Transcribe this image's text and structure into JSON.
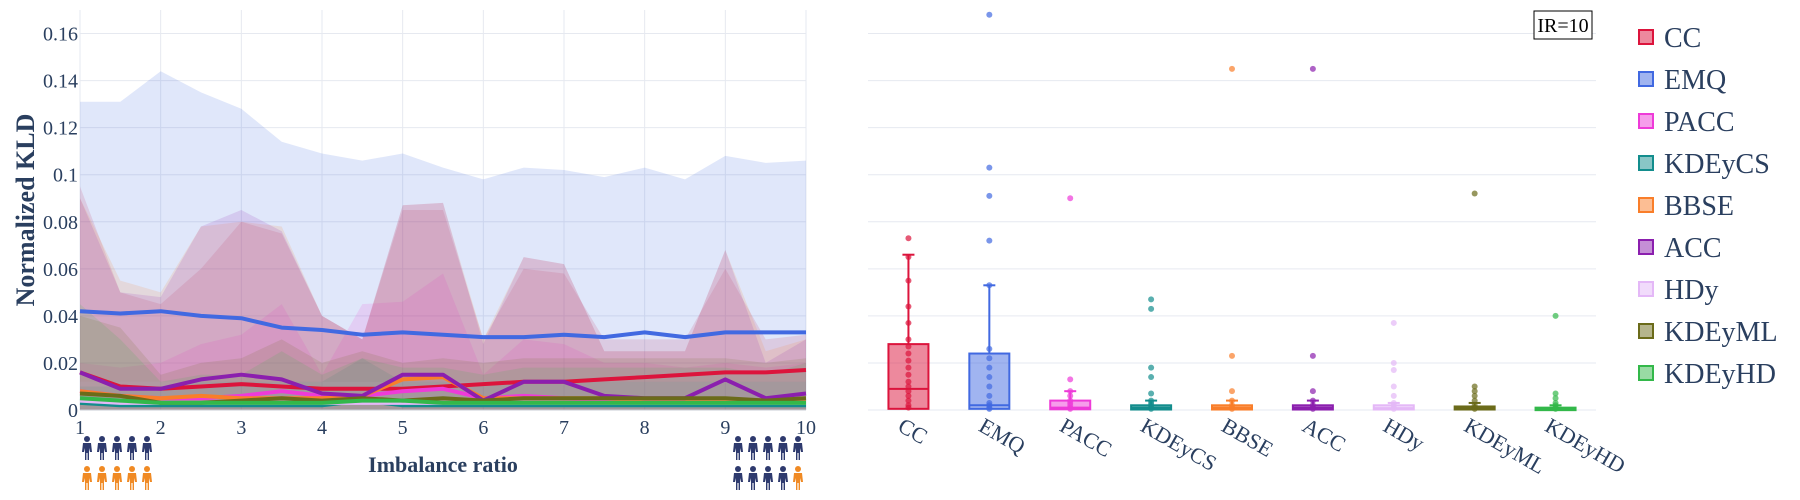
{
  "chart_data": [
    {
      "type": "line",
      "xlabel": "Imbalance ratio",
      "ylabel": "Normalized KLD",
      "xlim": [
        1,
        10
      ],
      "ylim": [
        0,
        0.17
      ],
      "xticks": [
        "1",
        "2",
        "3",
        "4",
        "5",
        "6",
        "7",
        "8",
        "9",
        "10"
      ],
      "yticks": [
        "0",
        "0.02",
        "0.04",
        "0.06",
        "0.08",
        "0.1",
        "0.12",
        "0.14",
        "0.16"
      ],
      "grid": true,
      "x": [
        1,
        1.5,
        2,
        2.5,
        3,
        3.5,
        4,
        4.5,
        5,
        5.5,
        6,
        6.5,
        7,
        7.5,
        8,
        8.5,
        9,
        9.5,
        10
      ],
      "series": [
        {
          "name": "CC",
          "color": "#dc143c",
          "values": [
            0.016,
            0.01,
            0.009,
            0.01,
            0.011,
            0.01,
            0.009,
            0.009,
            0.009,
            0.01,
            0.011,
            0.012,
            0.012,
            0.013,
            0.014,
            0.015,
            0.016,
            0.016,
            0.017
          ],
          "upper": [
            0.095,
            0.05,
            0.045,
            0.06,
            0.08,
            0.075,
            0.04,
            0.03,
            0.085,
            0.085,
            0.03,
            0.06,
            0.058,
            0.03,
            0.03,
            0.03,
            0.06,
            0.03,
            0.032
          ]
        },
        {
          "name": "EMQ",
          "color": "#4169e1",
          "values": [
            0.042,
            0.041,
            0.042,
            0.04,
            0.039,
            0.035,
            0.034,
            0.032,
            0.033,
            0.032,
            0.031,
            0.031,
            0.032,
            0.031,
            0.033,
            0.031,
            0.033,
            0.033,
            0.033
          ],
          "upper": [
            0.131,
            0.131,
            0.144,
            0.135,
            0.128,
            0.114,
            0.109,
            0.106,
            0.109,
            0.103,
            0.098,
            0.103,
            0.102,
            0.099,
            0.103,
            0.098,
            0.108,
            0.105,
            0.106
          ]
        },
        {
          "name": "PACC",
          "color": "#ee3bd8",
          "values": [
            0.008,
            0.006,
            0.005,
            0.005,
            0.006,
            0.008,
            0.006,
            0.006,
            0.008,
            0.009,
            0.005,
            0.006,
            0.005,
            0.004,
            0.004,
            0.004,
            0.004,
            0.004,
            0.004
          ],
          "upper": [
            0.02,
            0.018,
            0.02,
            0.028,
            0.032,
            0.045,
            0.015,
            0.045,
            0.046,
            0.058,
            0.015,
            0.03,
            0.028,
            0.02,
            0.02,
            0.018,
            0.02,
            0.018,
            0.02
          ]
        },
        {
          "name": "KDEyCS",
          "color": "#138d8d",
          "values": [
            0.003,
            0.002,
            0.002,
            0.002,
            0.002,
            0.002,
            0.002,
            0.004,
            0.002,
            0.002,
            0.002,
            0.002,
            0.002,
            0.002,
            0.002,
            0.002,
            0.002,
            0.002,
            0.002
          ],
          "upper": [
            0.01,
            0.01,
            0.01,
            0.012,
            0.012,
            0.012,
            0.012,
            0.022,
            0.012,
            0.012,
            0.01,
            0.012,
            0.012,
            0.012,
            0.012,
            0.012,
            0.012,
            0.012,
            0.012
          ]
        },
        {
          "name": "BBSE",
          "color": "#f97e2a",
          "values": [
            0.008,
            0.006,
            0.005,
            0.006,
            0.005,
            0.005,
            0.005,
            0.006,
            0.013,
            0.014,
            0.005,
            0.005,
            0.005,
            0.005,
            0.004,
            0.004,
            0.004,
            0.004,
            0.004
          ],
          "upper": [
            0.09,
            0.055,
            0.05,
            0.078,
            0.08,
            0.078,
            0.04,
            0.03,
            0.087,
            0.088,
            0.03,
            0.065,
            0.062,
            0.025,
            0.025,
            0.025,
            0.068,
            0.025,
            0.03
          ]
        },
        {
          "name": "ACC",
          "color": "#8b1fae",
          "values": [
            0.016,
            0.009,
            0.009,
            0.013,
            0.015,
            0.013,
            0.007,
            0.006,
            0.015,
            0.015,
            0.004,
            0.012,
            0.012,
            0.006,
            0.005,
            0.005,
            0.013,
            0.005,
            0.007
          ],
          "upper": [
            0.09,
            0.05,
            0.048,
            0.078,
            0.085,
            0.076,
            0.04,
            0.03,
            0.087,
            0.088,
            0.028,
            0.065,
            0.062,
            0.025,
            0.025,
            0.025,
            0.068,
            0.02,
            0.03
          ]
        },
        {
          "name": "HDy",
          "color": "#e4b8f7",
          "values": [
            0.004,
            0.003,
            0.003,
            0.003,
            0.003,
            0.003,
            0.003,
            0.003,
            0.003,
            0.003,
            0.003,
            0.003,
            0.003,
            0.003,
            0.003,
            0.003,
            0.003,
            0.003,
            0.003
          ],
          "upper": [
            0.012,
            0.012,
            0.012,
            0.012,
            0.012,
            0.012,
            0.012,
            0.012,
            0.012,
            0.012,
            0.012,
            0.012,
            0.012,
            0.012,
            0.012,
            0.012,
            0.012,
            0.012,
            0.012
          ]
        },
        {
          "name": "KDEyML",
          "color": "#6b6b1a",
          "values": [
            0.007,
            0.006,
            0.003,
            0.003,
            0.004,
            0.005,
            0.004,
            0.005,
            0.004,
            0.005,
            0.004,
            0.005,
            0.005,
            0.005,
            0.005,
            0.005,
            0.005,
            0.004,
            0.005
          ],
          "upper": [
            0.04,
            0.035,
            0.015,
            0.02,
            0.022,
            0.03,
            0.02,
            0.025,
            0.02,
            0.022,
            0.02,
            0.022,
            0.022,
            0.022,
            0.022,
            0.022,
            0.022,
            0.02,
            0.022
          ]
        },
        {
          "name": "KDEyHD",
          "color": "#33b84a",
          "values": [
            0.005,
            0.004,
            0.003,
            0.003,
            0.003,
            0.003,
            0.003,
            0.004,
            0.004,
            0.003,
            0.003,
            0.003,
            0.003,
            0.003,
            0.003,
            0.003,
            0.003,
            0.003,
            0.003
          ],
          "upper": [
            0.045,
            0.03,
            0.012,
            0.015,
            0.015,
            0.025,
            0.015,
            0.022,
            0.018,
            0.018,
            0.015,
            0.018,
            0.018,
            0.018,
            0.018,
            0.018,
            0.018,
            0.015,
            0.02
          ]
        }
      ]
    },
    {
      "type": "box",
      "annotation": "IR=10",
      "ylim": [
        0,
        0.17
      ],
      "categories": [
        "CC",
        "EMQ",
        "PACC",
        "KDEyCS",
        "BBSE",
        "ACC",
        "HDy",
        "KDEyML",
        "KDEyHD"
      ],
      "boxes": [
        {
          "name": "CC",
          "color": "#dc143c",
          "q1": 0.0005,
          "median": 0.009,
          "q3": 0.028,
          "lower_whisker": 0,
          "upper_whisker": 0.066,
          "points": [
            0.073,
            0.065,
            0.055,
            0.044,
            0.037,
            0.03,
            0.027,
            0.024,
            0.021,
            0.018,
            0.015,
            0.012,
            0.01,
            0.008,
            0.006,
            0.004,
            0.002,
            0.001
          ]
        },
        {
          "name": "EMQ",
          "color": "#4169e1",
          "q1": 0.0005,
          "median": 0.002,
          "q3": 0.024,
          "lower_whisker": 0,
          "upper_whisker": 0.053,
          "points": [
            0.168,
            0.103,
            0.091,
            0.072,
            0.053,
            0.026,
            0.022,
            0.018,
            0.014,
            0.01,
            0.006,
            0.003,
            0.002,
            0.001,
            0.0005
          ]
        },
        {
          "name": "PACC",
          "color": "#ee3bd8",
          "q1": 0.0003,
          "median": 0.001,
          "q3": 0.004,
          "lower_whisker": 0,
          "upper_whisker": 0.008,
          "points": [
            0.09,
            0.013,
            0.008,
            0.006,
            0.004,
            0.003,
            0.002,
            0.001,
            0.0005
          ]
        },
        {
          "name": "KDEyCS",
          "color": "#138d8d",
          "q1": 0.0002,
          "median": 0.001,
          "q3": 0.002,
          "lower_whisker": 0,
          "upper_whisker": 0.004,
          "points": [
            0.047,
            0.043,
            0.018,
            0.014,
            0.007,
            0.004,
            0.003,
            0.002,
            0.001,
            0.0005
          ]
        },
        {
          "name": "BBSE",
          "color": "#f97e2a",
          "q1": 0.0002,
          "median": 0.001,
          "q3": 0.002,
          "lower_whisker": 0,
          "upper_whisker": 0.004,
          "points": [
            0.145,
            0.023,
            0.008,
            0.004,
            0.002,
            0.001,
            0.0005
          ]
        },
        {
          "name": "ACC",
          "color": "#8b1fae",
          "q1": 0.0002,
          "median": 0.001,
          "q3": 0.002,
          "lower_whisker": 0,
          "upper_whisker": 0.004,
          "points": [
            0.145,
            0.023,
            0.008,
            0.004,
            0.002,
            0.001,
            0.0005
          ]
        },
        {
          "name": "HDy",
          "color": "#e4b8f7",
          "q1": 0.0002,
          "median": 0.0008,
          "q3": 0.002,
          "lower_whisker": 0,
          "upper_whisker": 0.003,
          "points": [
            0.037,
            0.02,
            0.017,
            0.01,
            0.006,
            0.003,
            0.002,
            0.001,
            0.0005
          ]
        },
        {
          "name": "KDEyML",
          "color": "#6b6b1a",
          "q1": 0.0002,
          "median": 0.0008,
          "q3": 0.0015,
          "lower_whisker": 0,
          "upper_whisker": 0.003,
          "points": [
            0.092,
            0.01,
            0.008,
            0.006,
            0.004,
            0.002,
            0.001,
            0.0005
          ]
        },
        {
          "name": "KDEyHD",
          "color": "#33b84a",
          "q1": 0.0002,
          "median": 0.0006,
          "q3": 0.001,
          "lower_whisker": 0,
          "upper_whisker": 0.002,
          "points": [
            0.04,
            0.007,
            0.005,
            0.003,
            0.002,
            0.001,
            0.0005
          ]
        }
      ]
    }
  ],
  "legend": {
    "placement": "right",
    "items": [
      "CC",
      "EMQ",
      "PACC",
      "KDEyCS",
      "BBSE",
      "ACC",
      "HDy",
      "KDEyML",
      "KDEyHD"
    ]
  },
  "icons": {
    "left_top": {
      "icon": "person-icon",
      "count": 5,
      "color": "#2e3a6e"
    },
    "left_bottom": {
      "icon": "person-icon",
      "count": 5,
      "color": "#f08a24"
    },
    "right_top": {
      "icon": "person-icon",
      "count": 5,
      "color": "#2e3a6e"
    },
    "right_bottom": {
      "icon": "person-icon",
      "count": 5,
      "colors": [
        "#2e3a6e",
        "#2e3a6e",
        "#2e3a6e",
        "#2e3a6e",
        "#f08a24"
      ]
    }
  }
}
